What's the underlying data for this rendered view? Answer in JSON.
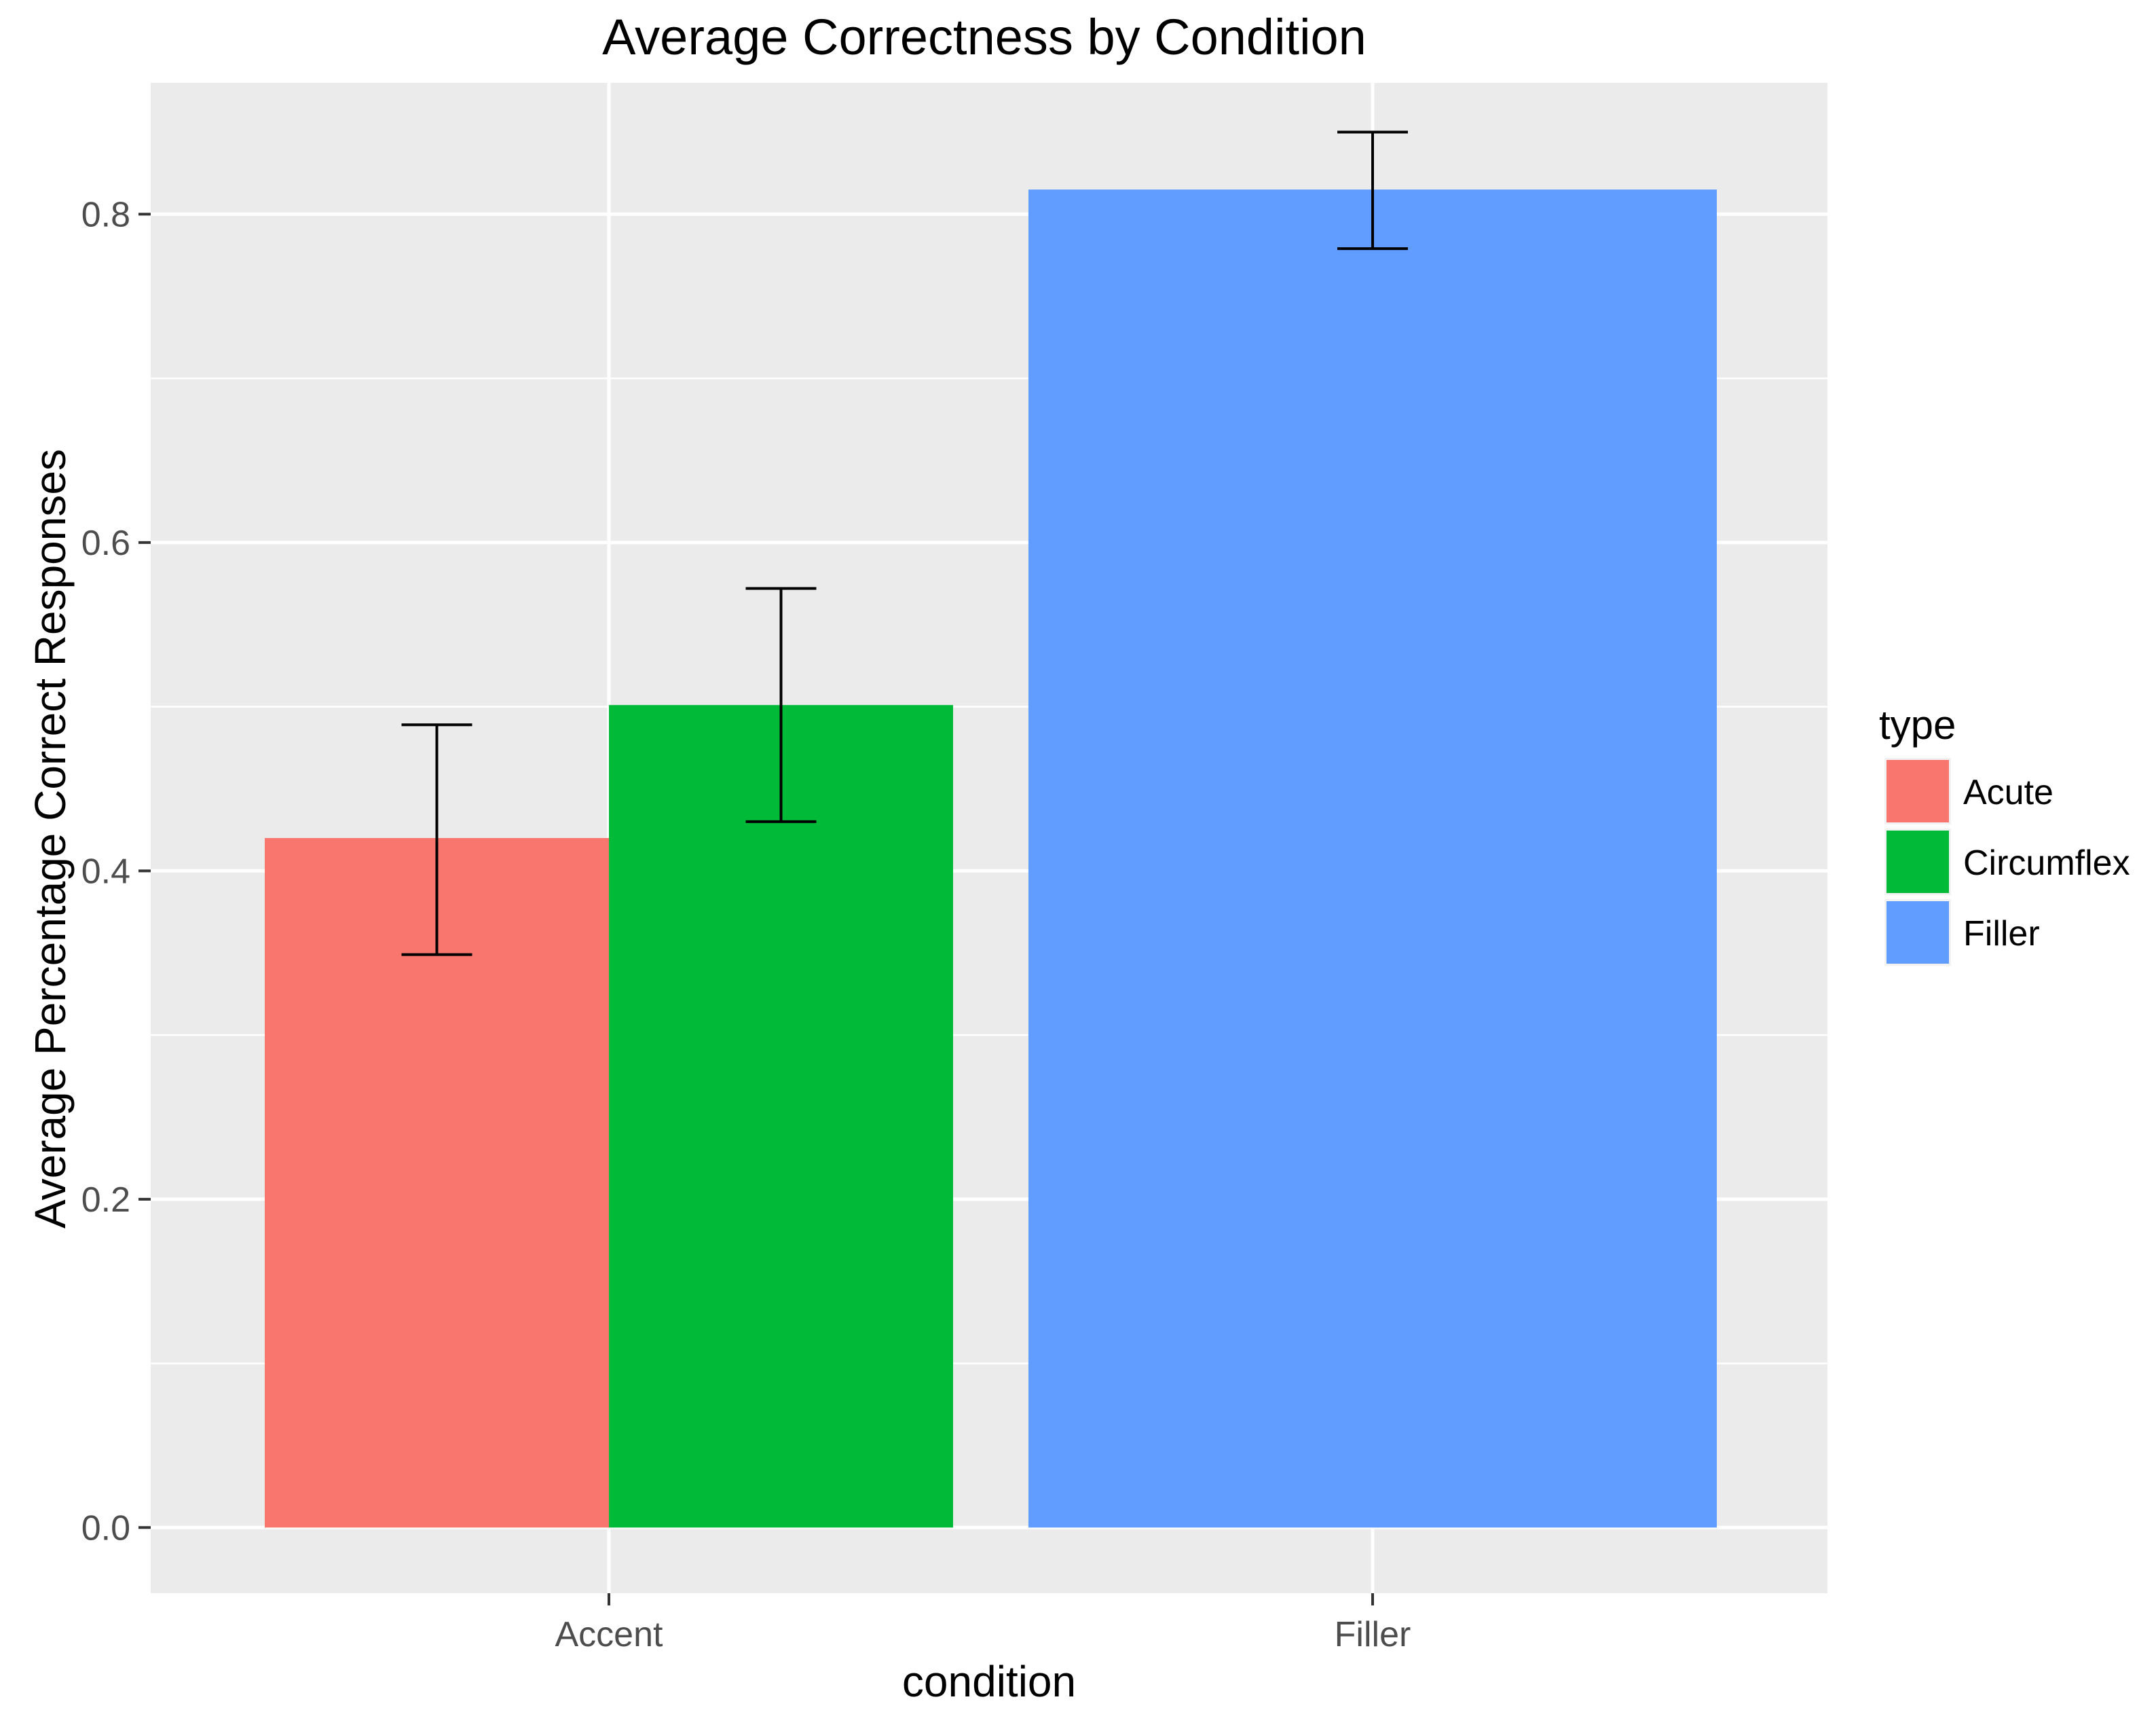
{
  "chart_data": {
    "type": "bar",
    "title": "Average Correctness by Condition",
    "xlabel": "condition",
    "ylabel": "Average Percentage Correct Responses",
    "categories": [
      "Accent",
      "Filler"
    ],
    "ylim": [
      -0.04,
      0.88
    ],
    "yticks": [
      0.0,
      0.2,
      0.4,
      0.6,
      0.8
    ],
    "ytick_labels": [
      "0.0",
      "0.2",
      "0.4",
      "0.6",
      "0.8"
    ],
    "grid": true,
    "legend": {
      "title": "type",
      "position": "right",
      "items": [
        {
          "label": "Acute",
          "color": "#F8766D"
        },
        {
          "label": "Circumflex",
          "color": "#00BA38"
        },
        {
          "label": "Filler",
          "color": "#619CFF"
        }
      ]
    },
    "bars": [
      {
        "category": "Accent",
        "type": "Acute",
        "value": 0.42,
        "error_low": 0.349,
        "error_high": 0.489,
        "color": "#F8766D"
      },
      {
        "category": "Accent",
        "type": "Circumflex",
        "value": 0.501,
        "error_low": 0.43,
        "error_high": 0.572,
        "color": "#00BA38"
      },
      {
        "category": "Filler",
        "type": "Filler",
        "value": 0.815,
        "error_low": 0.779,
        "error_high": 0.85,
        "color": "#619CFF"
      }
    ]
  }
}
